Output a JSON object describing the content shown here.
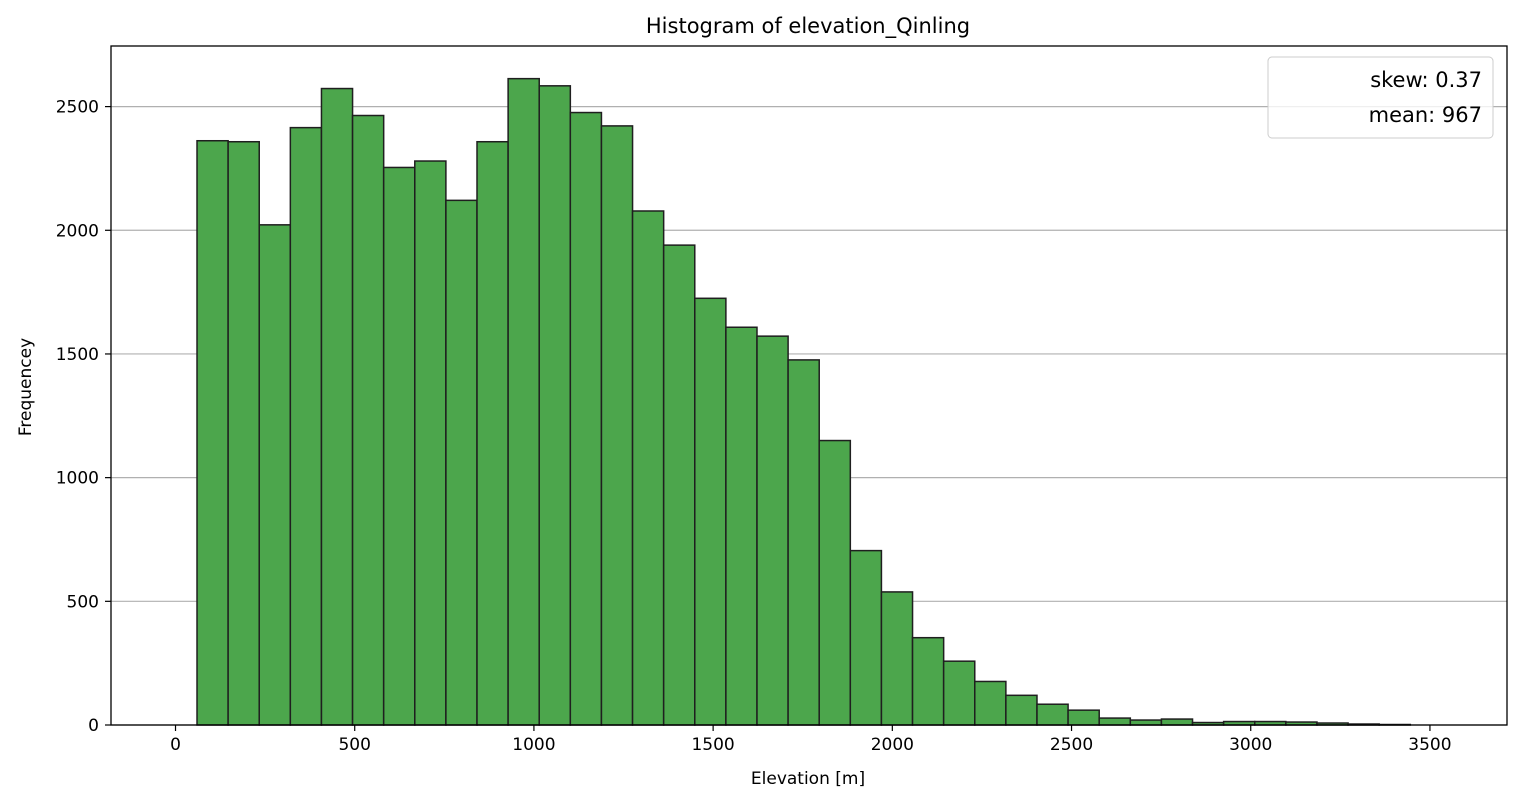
{
  "chart_data": {
    "type": "bar",
    "subtype": "histogram",
    "title": "Histogram of elevation_Qinling",
    "xlabel": "Elevation [m]",
    "ylabel": "Frequencey",
    "xlim": [
      -180,
      3715
    ],
    "ylim": [
      0,
      2745
    ],
    "xticks": [
      0,
      500,
      1000,
      1500,
      2000,
      2500,
      3000,
      3500
    ],
    "yticks": [
      0,
      500,
      1000,
      1500,
      2000,
      2500
    ],
    "grid": "horizontal",
    "bin_start": 60,
    "bin_width": 86.8,
    "values": [
      2362,
      2358,
      2022,
      2415,
      2573,
      2464,
      2254,
      2280,
      2121,
      2358,
      2613,
      2584,
      2476,
      2422,
      2078,
      1940,
      1725,
      1608,
      1572,
      1476,
      1150,
      705,
      538,
      353,
      258,
      176,
      120,
      84,
      60,
      28,
      20,
      24,
      10,
      14,
      14,
      12,
      8,
      4,
      2
    ],
    "bar_color": "#4ca64c",
    "edge_color": "#1f1f1f",
    "legend": {
      "position": "top-right",
      "entries": [
        "skew: 0.37",
        "mean: 967"
      ]
    }
  }
}
